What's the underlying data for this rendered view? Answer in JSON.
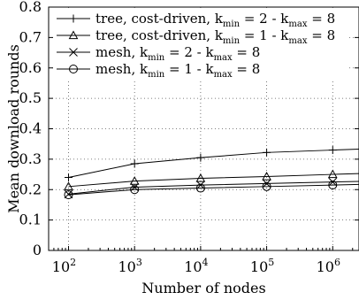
{
  "chart_data": {
    "type": "line",
    "xlabel": "Number of nodes",
    "ylabel": "Mean download rounds",
    "x_scale": "log",
    "x": [
      100,
      1000,
      10000,
      100000,
      1000000
    ],
    "x_tick_labels": [
      {
        "base": "10",
        "exp": "2"
      },
      {
        "base": "10",
        "exp": "3"
      },
      {
        "base": "10",
        "exp": "4"
      },
      {
        "base": "10",
        "exp": "5"
      },
      {
        "base": "10",
        "exp": "6"
      }
    ],
    "xlim": [
      50,
      2500000
    ],
    "ylim": [
      0,
      0.8
    ],
    "y_ticks": [
      "0",
      "0.1",
      "0.2",
      "0.3",
      "0.4",
      "0.5",
      "0.6",
      "0.7",
      "0.8"
    ],
    "grid": "dotted",
    "legend_position": "top",
    "series": [
      {
        "name_parts": [
          "tree, cost-driven, k",
          "min",
          " = 2 - k",
          "max",
          " = 8"
        ],
        "marker": "plus",
        "values": [
          0.24,
          0.285,
          0.305,
          0.322,
          0.33
        ]
      },
      {
        "name_parts": [
          "tree, cost-driven, k",
          "min",
          " = 1 - k",
          "max",
          " = 8"
        ],
        "marker": "triangle",
        "values": [
          0.21,
          0.228,
          0.237,
          0.243,
          0.25
        ]
      },
      {
        "name_parts": [
          "mesh, k",
          "min",
          " = 2 - k",
          "max",
          " = 8"
        ],
        "marker": "cross",
        "values": [
          0.185,
          0.208,
          0.215,
          0.22,
          0.225
        ]
      },
      {
        "name_parts": [
          "mesh, k",
          "min",
          " = 1 - k",
          "max",
          " = 8"
        ],
        "marker": "circle",
        "values": [
          0.183,
          0.2,
          0.205,
          0.21,
          0.215
        ]
      }
    ]
  }
}
